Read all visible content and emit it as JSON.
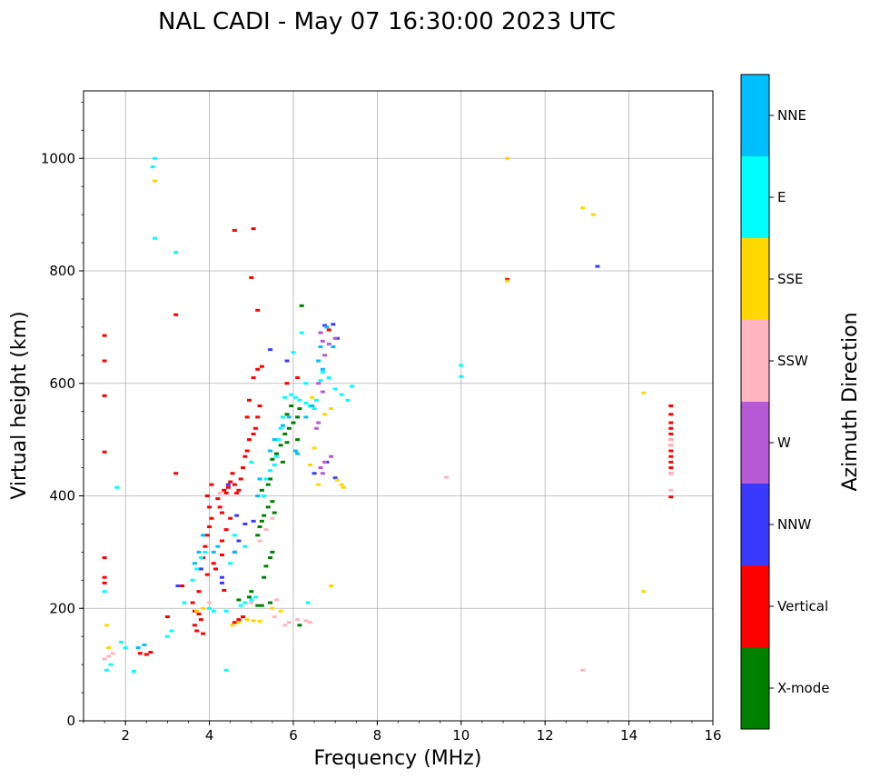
{
  "chart_data": {
    "type": "scatter",
    "title": "NAL CADI - May 07 16:30:00 2023 UTC",
    "xlabel": "Frequency (MHz)",
    "ylabel": "Virtual height (km)",
    "xlim": [
      1.0,
      16.0
    ],
    "ylim": [
      0,
      1120
    ],
    "xticks": [
      2,
      4,
      6,
      8,
      10,
      12,
      14,
      16
    ],
    "xtick_labels": [
      "2",
      "4",
      "6",
      "8",
      "10",
      "12",
      "14",
      "16"
    ],
    "yticks": [
      0,
      200,
      400,
      600,
      800,
      1000
    ],
    "ytick_labels": [
      "0",
      "200",
      "400",
      "600",
      "800",
      "1000"
    ],
    "grid": true,
    "colorbar": {
      "title": "Azimuth Direction",
      "categories": [
        "X-mode",
        "Vertical",
        "NNW",
        "W",
        "SSW",
        "SSE",
        "E",
        "NNE"
      ],
      "colors": [
        "#008000",
        "#ff0000",
        "#3a3aff",
        "#b65ad6",
        "#ffb6c1",
        "#ffd700",
        "#00ffff",
        "#00bfff"
      ]
    },
    "series": [
      {
        "name": "X-mode",
        "points": [
          [
            4.7,
            215
          ],
          [
            4.95,
            220
          ],
          [
            5.0,
            230
          ],
          [
            5.15,
            205
          ],
          [
            5.25,
            205
          ],
          [
            5.45,
            210
          ],
          [
            5.5,
            300
          ],
          [
            5.45,
            290
          ],
          [
            5.35,
            275
          ],
          [
            5.3,
            255
          ],
          [
            5.15,
            330
          ],
          [
            5.2,
            345
          ],
          [
            5.25,
            355
          ],
          [
            5.3,
            365
          ],
          [
            5.4,
            380
          ],
          [
            5.5,
            390
          ],
          [
            5.55,
            370
          ],
          [
            5.25,
            410
          ],
          [
            5.4,
            420
          ],
          [
            5.45,
            430
          ],
          [
            5.5,
            465
          ],
          [
            5.6,
            475
          ],
          [
            5.7,
            490
          ],
          [
            5.8,
            510
          ],
          [
            5.9,
            520
          ],
          [
            6.0,
            530
          ],
          [
            6.1,
            540
          ],
          [
            6.15,
            555
          ],
          [
            5.85,
            545
          ],
          [
            5.95,
            560
          ],
          [
            5.75,
            460
          ],
          [
            5.85,
            495
          ],
          [
            6.1,
            500
          ],
          [
            6.2,
            738
          ],
          [
            6.15,
            170
          ]
        ]
      },
      {
        "name": "Vertical",
        "points": [
          [
            1.5,
            685
          ],
          [
            1.5,
            640
          ],
          [
            1.5,
            578
          ],
          [
            1.5,
            478
          ],
          [
            1.5,
            290
          ],
          [
            1.5,
            255
          ],
          [
            1.5,
            245
          ],
          [
            3.2,
            722
          ],
          [
            3.2,
            440
          ],
          [
            4.6,
            872
          ],
          [
            5.05,
            875
          ],
          [
            5.0,
            788
          ],
          [
            5.15,
            730
          ],
          [
            2.35,
            120
          ],
          [
            2.5,
            118
          ],
          [
            2.6,
            122
          ],
          [
            3.0,
            185
          ],
          [
            3.35,
            240
          ],
          [
            3.6,
            210
          ],
          [
            3.65,
            195
          ],
          [
            3.75,
            190
          ],
          [
            3.8,
            180
          ],
          [
            3.7,
            160
          ],
          [
            3.85,
            155
          ],
          [
            3.9,
            310
          ],
          [
            3.95,
            330
          ],
          [
            4.0,
            345
          ],
          [
            4.05,
            360
          ],
          [
            4.0,
            380
          ],
          [
            3.95,
            400
          ],
          [
            4.05,
            420
          ],
          [
            4.2,
            395
          ],
          [
            4.25,
            380
          ],
          [
            4.3,
            370
          ],
          [
            4.35,
            410
          ],
          [
            4.4,
            405
          ],
          [
            4.45,
            415
          ],
          [
            4.5,
            425
          ],
          [
            4.55,
            440
          ],
          [
            4.6,
            420
          ],
          [
            4.65,
            405
          ],
          [
            4.7,
            410
          ],
          [
            4.75,
            430
          ],
          [
            4.8,
            450
          ],
          [
            4.85,
            470
          ],
          [
            4.9,
            480
          ],
          [
            4.95,
            500
          ],
          [
            5.05,
            510
          ],
          [
            5.1,
            520
          ],
          [
            5.15,
            540
          ],
          [
            5.2,
            560
          ],
          [
            4.9,
            540
          ],
          [
            4.95,
            570
          ],
          [
            5.05,
            610
          ],
          [
            5.15,
            625
          ],
          [
            5.25,
            630
          ],
          [
            4.6,
            175
          ],
          [
            4.7,
            180
          ],
          [
            4.8,
            185
          ],
          [
            4.1,
            280
          ],
          [
            4.15,
            270
          ],
          [
            4.3,
            320
          ],
          [
            4.4,
            340
          ],
          [
            3.95,
            260
          ],
          [
            3.85,
            290
          ],
          [
            3.75,
            230
          ],
          [
            3.65,
            170
          ],
          [
            4.5,
            360
          ],
          [
            4.3,
            295
          ],
          [
            4.35,
            232
          ],
          [
            6.65,
            690
          ],
          [
            6.85,
            695
          ],
          [
            6.1,
            610
          ],
          [
            5.85,
            600
          ],
          [
            11.1,
            785
          ],
          [
            15.0,
            560
          ],
          [
            15.0,
            545
          ],
          [
            15.0,
            530
          ],
          [
            15.0,
            520
          ],
          [
            15.0,
            510
          ],
          [
            15.0,
            500
          ],
          [
            15.0,
            490
          ],
          [
            15.0,
            480
          ],
          [
            15.0,
            470
          ],
          [
            15.0,
            460
          ],
          [
            15.0,
            450
          ],
          [
            15.0,
            440
          ],
          [
            15.0,
            398
          ]
        ]
      },
      {
        "name": "NNW",
        "points": [
          [
            3.25,
            240
          ],
          [
            3.8,
            270
          ],
          [
            4.3,
            255
          ],
          [
            4.3,
            245
          ],
          [
            4.6,
            300
          ],
          [
            4.7,
            320
          ],
          [
            4.85,
            350
          ],
          [
            5.05,
            355
          ],
          [
            6.75,
            703
          ],
          [
            6.95,
            705
          ],
          [
            7.05,
            680
          ],
          [
            6.5,
            440
          ],
          [
            6.8,
            460
          ],
          [
            7.0,
            432
          ],
          [
            13.25,
            808
          ],
          [
            4.45,
            420
          ],
          [
            4.65,
            365
          ],
          [
            5.85,
            640
          ],
          [
            5.45,
            660
          ]
        ]
      },
      {
        "name": "W",
        "points": [
          [
            6.65,
            690
          ],
          [
            6.7,
            675
          ],
          [
            6.75,
            650
          ],
          [
            6.85,
            670
          ],
          [
            6.6,
            600
          ],
          [
            6.7,
            585
          ],
          [
            6.6,
            530
          ],
          [
            6.75,
            460
          ],
          [
            6.65,
            450
          ],
          [
            6.7,
            440
          ],
          [
            6.9,
            470
          ],
          [
            7.0,
            680
          ],
          [
            6.55,
            520
          ]
        ]
      },
      {
        "name": "SSW",
        "points": [
          [
            1.5,
            110
          ],
          [
            1.6,
            115
          ],
          [
            1.7,
            120
          ],
          [
            5.0,
            210
          ],
          [
            5.6,
            215
          ],
          [
            5.55,
            185
          ],
          [
            5.8,
            170
          ],
          [
            5.9,
            175
          ],
          [
            6.1,
            180
          ],
          [
            6.3,
            178
          ],
          [
            6.4,
            175
          ],
          [
            5.2,
            320
          ],
          [
            5.35,
            340
          ],
          [
            5.5,
            360
          ],
          [
            9.65,
            433
          ],
          [
            12.9,
            90
          ],
          [
            15.0,
            410
          ],
          [
            15.0,
            490
          ],
          [
            15.0,
            500
          ],
          [
            15.0,
            440
          ],
          [
            4.25,
            405
          ],
          [
            4.0,
            210
          ]
        ]
      },
      {
        "name": "SSE",
        "points": [
          [
            1.55,
            170
          ],
          [
            1.6,
            130
          ],
          [
            2.7,
            960
          ],
          [
            11.1,
            1000
          ],
          [
            12.9,
            912
          ],
          [
            13.15,
            900
          ],
          [
            11.1,
            782
          ],
          [
            14.35,
            583
          ],
          [
            14.35,
            230
          ],
          [
            4.55,
            170
          ],
          [
            4.7,
            175
          ],
          [
            4.9,
            180
          ],
          [
            5.05,
            178
          ],
          [
            5.2,
            177
          ],
          [
            5.5,
            200
          ],
          [
            5.7,
            195
          ],
          [
            3.7,
            195
          ],
          [
            3.85,
            200
          ],
          [
            6.4,
            455
          ],
          [
            6.5,
            485
          ],
          [
            6.6,
            420
          ],
          [
            6.75,
            545
          ],
          [
            6.9,
            555
          ],
          [
            7.05,
            428
          ],
          [
            7.15,
            420
          ],
          [
            7.2,
            415
          ],
          [
            6.45,
            575
          ],
          [
            6.9,
            240
          ]
        ]
      },
      {
        "name": "E",
        "points": [
          [
            1.55,
            90
          ],
          [
            1.65,
            100
          ],
          [
            1.8,
            415
          ],
          [
            1.5,
            230
          ],
          [
            1.9,
            140
          ],
          [
            2.0,
            130
          ],
          [
            2.2,
            88
          ],
          [
            2.7,
            858
          ],
          [
            3.2,
            833
          ],
          [
            3.0,
            150
          ],
          [
            3.1,
            160
          ],
          [
            3.4,
            210
          ],
          [
            3.6,
            250
          ],
          [
            3.7,
            270
          ],
          [
            3.8,
            290
          ],
          [
            3.9,
            300
          ],
          [
            4.0,
            200
          ],
          [
            4.1,
            195
          ],
          [
            4.4,
            90
          ],
          [
            4.4,
            195
          ],
          [
            4.5,
            280
          ],
          [
            4.6,
            330
          ],
          [
            4.75,
            205
          ],
          [
            4.85,
            210
          ],
          [
            5.0,
            215
          ],
          [
            5.1,
            220
          ],
          [
            5.3,
            400
          ],
          [
            5.35,
            430
          ],
          [
            5.45,
            445
          ],
          [
            5.55,
            455
          ],
          [
            5.6,
            470
          ],
          [
            5.65,
            500
          ],
          [
            5.7,
            520
          ],
          [
            5.75,
            540
          ],
          [
            5.8,
            575
          ],
          [
            5.95,
            580
          ],
          [
            6.05,
            575
          ],
          [
            6.15,
            570
          ],
          [
            6.3,
            600
          ],
          [
            6.3,
            565
          ],
          [
            6.4,
            560
          ],
          [
            6.5,
            555
          ],
          [
            6.55,
            570
          ],
          [
            6.65,
            605
          ],
          [
            6.7,
            620
          ],
          [
            6.85,
            610
          ],
          [
            7.0,
            590
          ],
          [
            7.15,
            580
          ],
          [
            7.3,
            570
          ],
          [
            7.4,
            595
          ],
          [
            6.2,
            690
          ],
          [
            6.0,
            655
          ],
          [
            6.35,
            210
          ],
          [
            10.0,
            632
          ],
          [
            10.0,
            612
          ],
          [
            2.65,
            985
          ],
          [
            2.7,
            1000
          ],
          [
            4.85,
            310
          ],
          [
            5.0,
            460
          ]
        ]
      },
      {
        "name": "NNE",
        "points": [
          [
            2.3,
            130
          ],
          [
            2.45,
            135
          ],
          [
            3.65,
            280
          ],
          [
            3.75,
            300
          ],
          [
            3.85,
            330
          ],
          [
            4.6,
            300
          ],
          [
            5.15,
            400
          ],
          [
            5.2,
            430
          ],
          [
            5.45,
            480
          ],
          [
            5.55,
            500
          ],
          [
            5.75,
            525
          ],
          [
            5.9,
            540
          ],
          [
            6.05,
            480
          ],
          [
            6.1,
            475
          ],
          [
            6.3,
            540
          ],
          [
            6.45,
            560
          ],
          [
            6.6,
            640
          ],
          [
            6.65,
            665
          ],
          [
            6.7,
            625
          ],
          [
            6.8,
            700
          ],
          [
            6.95,
            665
          ],
          [
            4.1,
            300
          ],
          [
            4.2,
            310
          ]
        ]
      }
    ]
  }
}
